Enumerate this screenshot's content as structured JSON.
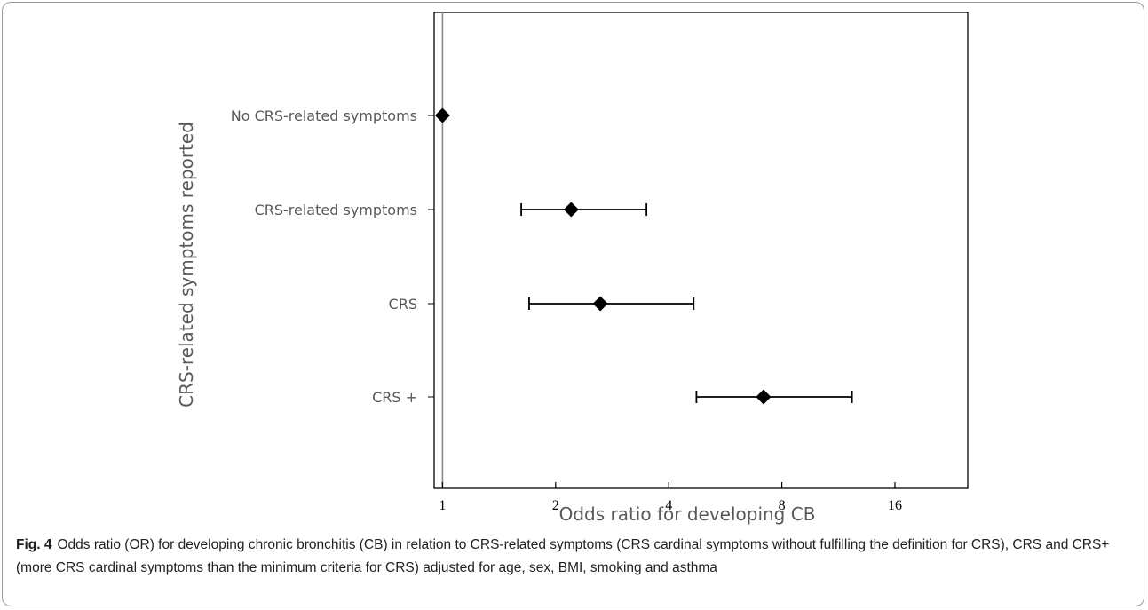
{
  "chart_data": {
    "type": "scatter",
    "subtype": "forest-plot",
    "xscale": "log2",
    "xlim": [
      0.95,
      25
    ],
    "xticks": [
      1,
      2,
      4,
      8,
      16
    ],
    "xtick_labels": [
      "1",
      "2",
      "4",
      "8",
      "16"
    ],
    "xlabel": "Odds ratio for developing CB",
    "ylabel": "CRS-related symptoms reported",
    "reference_line": 1,
    "categories": [
      "No CRS-related symptoms",
      "CRS-related symptoms",
      "CRS",
      "CRS +"
    ],
    "points": [
      {
        "label": "No CRS-related symptoms",
        "or": 1.0,
        "ci": null
      },
      {
        "label": "CRS-related symptoms",
        "or": 2.2,
        "ci": [
          1.62,
          3.49
        ]
      },
      {
        "label": "CRS",
        "or": 2.63,
        "ci": [
          1.7,
          4.66
        ]
      },
      {
        "label": "CRS +",
        "or": 7.15,
        "ci": [
          4.74,
          12.3
        ]
      }
    ]
  },
  "caption": {
    "label": "Fig. 4",
    "text": "Odds ratio (OR) for developing chronic bronchitis (CB) in relation to CRS-related symptoms (CRS cardinal symptoms without fulfilling the definition for CRS), CRS and CRS+ (more CRS cardinal symptoms than the minimum criteria for CRS) adjusted for age, sex, BMI, smoking and asthma"
  }
}
